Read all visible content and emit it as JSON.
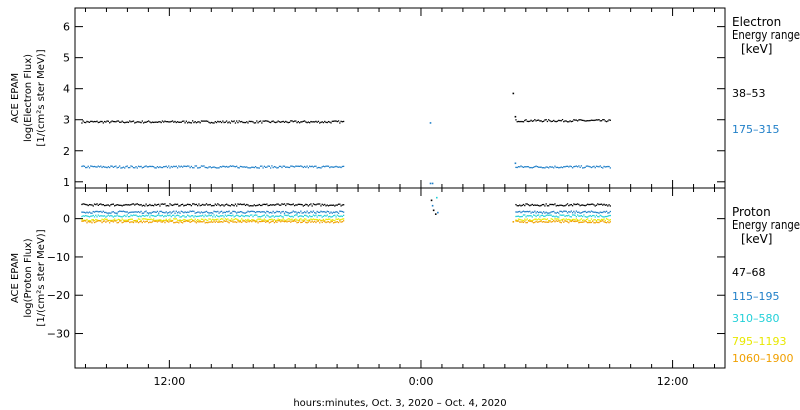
{
  "chart_data": [
    {
      "type": "scatter",
      "instrument_label": "ACE EPAM",
      "ylabel_line1": "log(Electron Flux)",
      "ylabel_line2": "[1/(cm²s ster MeV)]",
      "ylim": [
        0.8,
        6.6
      ],
      "yticks": [
        1,
        2,
        3,
        4,
        5,
        6
      ],
      "legend_title": "Electron",
      "legend_subtitle": "Energy range",
      "legend_unit": "[keV]",
      "series": [
        {
          "name": "38–53",
          "color": "#000000",
          "level": 2.93,
          "post_level": 2.97
        },
        {
          "name": "175–315",
          "color": "#1f7fc8",
          "level": 1.48,
          "post_level": 1.48
        }
      ],
      "gap_points": [
        {
          "x": 24.45,
          "y": 2.9,
          "series": 1
        },
        {
          "x": 24.45,
          "y": 0.95,
          "series": 1
        },
        {
          "x": 24.55,
          "y": 0.95,
          "series": 1
        },
        {
          "x": 28.4,
          "y": 3.85,
          "series": 0
        },
        {
          "x": 28.5,
          "y": 3.1,
          "series": 0
        },
        {
          "x": 28.5,
          "y": 1.6,
          "series": 1
        }
      ]
    },
    {
      "type": "scatter",
      "instrument_label": "ACE EPAM",
      "ylabel_line1": "log(Proton Flux)",
      "ylabel_line2": "[1/(cm²s ster MeV)]",
      "ylim": [
        -39,
        8
      ],
      "yticks": [
        -30,
        -20,
        -10,
        0
      ],
      "legend_title": "Proton",
      "legend_subtitle": "Energy range",
      "legend_unit": "[keV]",
      "series": [
        {
          "name": "47–68",
          "color": "#000000",
          "level": 3.6
        },
        {
          "name": "115–195",
          "color": "#1f7fc8",
          "level": 1.7
        },
        {
          "name": "310–580",
          "color": "#22d0d8",
          "level": 0.7
        },
        {
          "name": "795–1193",
          "color": "#e8e800",
          "level": -0.3
        },
        {
          "name": "1060–1900",
          "color": "#f0a000",
          "level": -0.8
        }
      ],
      "gap_points": [
        {
          "x": 24.5,
          "y": 4.8,
          "series": 0
        },
        {
          "x": 24.55,
          "y": 3.4,
          "series": 1
        },
        {
          "x": 24.6,
          "y": 2.2,
          "series": 0
        },
        {
          "x": 24.7,
          "y": 1.2,
          "series": 0
        },
        {
          "x": 24.75,
          "y": 5.5,
          "series": 2
        },
        {
          "x": 24.8,
          "y": 1.6,
          "series": 1
        },
        {
          "x": 28.4,
          "y": -0.8,
          "series": 4
        }
      ]
    }
  ],
  "x_axis": {
    "label": "hours:minutes, Oct.  3, 2020 – Oct.  4, 2020",
    "range_hours": [
      7.5,
      38.5
    ],
    "tick_labels": [
      {
        "hour": 12,
        "label": "12:00"
      },
      {
        "hour": 24,
        "label": "0:00"
      },
      {
        "hour": 36,
        "label": "12:00"
      }
    ],
    "data_segments": [
      {
        "start": 7.8,
        "end": 20.3
      },
      {
        "start": 28.5,
        "end": 33.0
      }
    ]
  }
}
